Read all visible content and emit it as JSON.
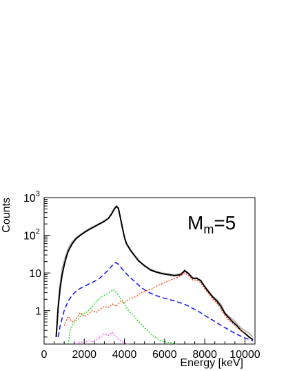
{
  "chart_data": {
    "type": "line",
    "xlabel": "Energy [keV]",
    "ylabel": "Counts",
    "xlim": [
      0,
      10500
    ],
    "ylim": [
      0.13,
      1000
    ],
    "y_scale": "log",
    "x_ticks": [
      0,
      2000,
      4000,
      6000,
      8000,
      10000
    ],
    "y_ticks": [
      {
        "value": 1,
        "label": "1"
      },
      {
        "value": 10,
        "label": "10"
      },
      {
        "value": 100,
        "label": "10",
        "exp": "2"
      },
      {
        "value": 1000,
        "label": "10",
        "exp": "3"
      }
    ],
    "annotation": {
      "main": "M",
      "sub": "m",
      "suffix": "=5"
    },
    "series": [
      {
        "color": "#b8aea6",
        "style": "solid",
        "x": [
          600,
          650,
          700,
          750,
          800,
          850,
          900,
          1000,
          1100,
          1200,
          1400,
          1600,
          1800,
          2000,
          2200,
          2400,
          2600,
          2800,
          3000,
          3200,
          3350,
          3500,
          3600,
          3700,
          3800,
          3900,
          4000,
          4100,
          4300,
          4500,
          4700,
          5000,
          5300,
          5600,
          5900,
          6200,
          6500,
          6800,
          7000,
          7200,
          7400,
          7600,
          7800,
          8000,
          8200,
          8400,
          8600,
          8800,
          9000,
          9200,
          9400,
          9600,
          9800,
          10000,
          10200,
          10400
        ],
        "y": [
          0.2,
          0.6,
          1.5,
          3.2,
          5.5,
          9,
          13,
          21,
          32,
          45,
          68,
          88,
          105,
          125,
          145,
          165,
          190,
          215,
          245,
          290,
          380,
          530,
          620,
          540,
          300,
          160,
          90,
          62,
          42,
          30,
          22,
          16,
          12.5,
          11,
          10,
          9.5,
          9,
          9.5,
          12,
          10,
          7.5,
          7.5,
          6.5,
          4.5,
          3.3,
          2.4,
          2.0,
          1.5,
          0.9,
          0.7,
          0.6,
          0.45,
          0.35,
          0.3,
          0.25,
          0.2
        ]
      },
      {
        "color": "#000000",
        "style": "solid",
        "x": [
          600,
          700,
          800,
          900,
          1000,
          1100,
          1200,
          1400,
          1600,
          1800,
          2000,
          2200,
          2400,
          2600,
          2800,
          3000,
          3200,
          3350,
          3500,
          3600,
          3700,
          3800,
          3900,
          4000,
          4100,
          4300,
          4500,
          4700,
          5000,
          5300,
          5600,
          5900,
          6200,
          6500,
          6800,
          7000,
          7200,
          7400,
          7600,
          7800,
          8000,
          8200,
          8400,
          8600,
          8800,
          9000,
          9200,
          9400,
          9600,
          9800,
          10000,
          10200,
          10400
        ],
        "y": [
          0.2,
          1.2,
          4,
          9,
          16,
          26,
          38,
          60,
          82,
          100,
          118,
          138,
          158,
          180,
          205,
          235,
          280,
          360,
          500,
          580,
          520,
          290,
          155,
          88,
          60,
          40,
          29,
          21,
          15.5,
          12,
          10.5,
          9.5,
          9,
          8.5,
          9,
          11.5,
          9.5,
          7.2,
          7.2,
          6.2,
          4.3,
          3.1,
          2.3,
          1.8,
          1.3,
          0.85,
          0.65,
          0.5,
          0.4,
          0.3,
          0.25,
          0.2,
          0.17
        ]
      },
      {
        "color": "#1a1aff",
        "style": "dashed",
        "x": [
          700,
          800,
          1000,
          1200,
          1400,
          1600,
          1800,
          2000,
          2200,
          2400,
          2600,
          2800,
          3000,
          3200,
          3400,
          3550,
          3700,
          3900,
          4100,
          4300,
          4500,
          4700,
          4900,
          5100,
          5300,
          5600,
          5900,
          6200,
          6500,
          6800,
          7100,
          7400,
          7700,
          8000,
          8300,
          8600,
          8900,
          9200,
          9500,
          9800,
          10100,
          10400
        ],
        "y": [
          0.2,
          0.4,
          1.0,
          1.8,
          2.6,
          3.3,
          3.9,
          4.4,
          5.0,
          5.6,
          6.4,
          7.5,
          9.5,
          12,
          16,
          19,
          17,
          12.5,
          9.5,
          7.5,
          6.0,
          4.8,
          3.9,
          3.3,
          2.9,
          2.5,
          2.2,
          2.0,
          1.8,
          1.6,
          1.4,
          1.15,
          0.95,
          0.75,
          0.6,
          0.48,
          0.38,
          0.31,
          0.25,
          0.21,
          0.18,
          0.16
        ]
      },
      {
        "color": "#00dd00",
        "style": "dotted",
        "x": [
          1200,
          1300,
          1500,
          1700,
          1900,
          2100,
          2300,
          2500,
          2700,
          2900,
          3100,
          3300,
          3450,
          3600,
          3800,
          4000,
          4200,
          4400,
          4600,
          4800,
          5000,
          5200,
          5400,
          5600,
          5800,
          6000,
          6300,
          6600
        ],
        "y": [
          0.13,
          0.3,
          0.5,
          0.6,
          0.8,
          0.9,
          1.1,
          1.5,
          2.0,
          2.4,
          2.7,
          3.2,
          3.6,
          3.0,
          2.2,
          1.5,
          1.0,
          0.8,
          0.6,
          0.45,
          0.35,
          0.28,
          0.22,
          0.19,
          0.16,
          0.15,
          0.14,
          0.13
        ]
      },
      {
        "color": "#ff3300",
        "style": "dotted",
        "x": [
          1000,
          1200,
          1400,
          1600,
          1800,
          2000,
          2200,
          2400,
          2600,
          2800,
          3000,
          3200,
          3400,
          3600,
          3800,
          4000,
          4200,
          4400,
          4600,
          4800,
          5000,
          5200,
          5400,
          5600,
          5800,
          6000,
          6200,
          6400,
          6600,
          6800,
          7000,
          7200,
          7400,
          7600,
          7800,
          8000,
          8200,
          8400,
          8600,
          8800,
          9000,
          9200,
          9400,
          9600,
          9800,
          10000
        ],
        "y": [
          0.4,
          0.7,
          0.5,
          0.6,
          0.9,
          0.7,
          0.8,
          1.0,
          0.9,
          1.1,
          1.3,
          1.2,
          1.5,
          1.3,
          1.8,
          1.6,
          2.0,
          2.2,
          2.4,
          2.9,
          3.2,
          3.6,
          3.8,
          4.5,
          5.0,
          5.5,
          6.2,
          6.8,
          7.5,
          8.5,
          10,
          8.5,
          6.5,
          6.5,
          5.5,
          3.8,
          2.8,
          2.0,
          1.6,
          1.1,
          0.75,
          0.55,
          0.45,
          0.35,
          0.3,
          0.25
        ]
      },
      {
        "color": "#ff44ff",
        "style": "dotted",
        "x": [
          1600,
          1800,
          2000,
          2200,
          2400,
          2600,
          2800,
          3000,
          3200,
          3400,
          3600,
          3800,
          4000,
          4200
        ],
        "y": [
          0.13,
          0.15,
          0.14,
          0.16,
          0.15,
          0.17,
          0.2,
          0.24,
          0.22,
          0.27,
          0.2,
          0.16,
          0.14,
          0.13
        ]
      }
    ]
  }
}
